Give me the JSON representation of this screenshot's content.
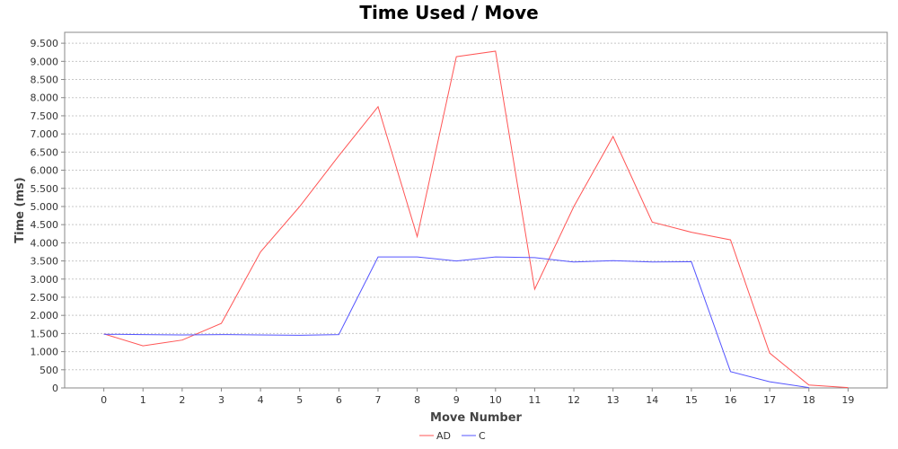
{
  "chart_data": {
    "type": "line",
    "title": "Time Used / Move",
    "xlabel": "Move Number",
    "ylabel": "Time (ms)",
    "x": [
      0,
      1,
      2,
      3,
      4,
      5,
      6,
      7,
      8,
      9,
      10,
      11,
      12,
      13,
      14,
      15,
      16,
      17,
      18,
      19
    ],
    "xlim": [
      -1,
      20
    ],
    "ylim": [
      0,
      9800
    ],
    "yticks": [
      0,
      500,
      1000,
      1500,
      2000,
      2500,
      3000,
      3500,
      4000,
      4500,
      5000,
      5500,
      6000,
      6500,
      7000,
      7500,
      8000,
      8500,
      9000,
      9500
    ],
    "ytick_labels": [
      "0",
      "500",
      "1.000",
      "1.500",
      "2.000",
      "2.500",
      "3.000",
      "3.500",
      "4.000",
      "4.500",
      "5.000",
      "5.500",
      "6.000",
      "6.500",
      "7.000",
      "7.500",
      "8.000",
      "8.500",
      "9.000",
      "9.500"
    ],
    "grid": true,
    "legend_position": "bottom",
    "series": [
      {
        "name": "AD",
        "color": "#ff5555",
        "x": [
          0,
          1,
          2,
          3,
          4,
          5,
          6,
          7,
          8,
          9,
          10,
          11,
          12,
          13,
          14,
          15,
          16,
          17,
          18,
          19
        ],
        "values": [
          1490,
          1160,
          1320,
          1780,
          3750,
          5000,
          6400,
          7750,
          4170,
          9130,
          9280,
          2720,
          5000,
          6930,
          4570,
          4290,
          4080,
          960,
          80,
          10
        ]
      },
      {
        "name": "C",
        "color": "#5555ff",
        "x": [
          0,
          1,
          2,
          3,
          4,
          5,
          6,
          7,
          8,
          9,
          10,
          11,
          12,
          13,
          14,
          15,
          16,
          17,
          18
        ],
        "values": [
          1480,
          1470,
          1460,
          1470,
          1460,
          1450,
          1470,
          3610,
          3610,
          3500,
          3610,
          3590,
          3470,
          3510,
          3470,
          3480,
          450,
          170,
          10
        ]
      }
    ]
  }
}
